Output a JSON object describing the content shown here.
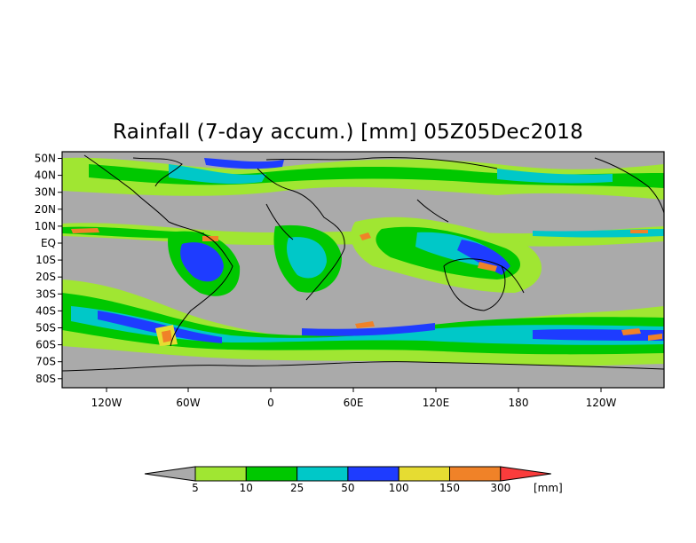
{
  "title": "Rainfall (7-day accum.) [mm] 05Z05Dec2018",
  "map": {
    "lat_labels": [
      "50N",
      "40N",
      "30N",
      "20N",
      "10N",
      "EQ",
      "10S",
      "20S",
      "30S",
      "40S",
      "50S",
      "60S",
      "70S",
      "80S"
    ],
    "lon_labels": [
      "120W",
      "60W",
      "0",
      "60E",
      "120E",
      "180",
      "120W"
    ],
    "background_color": "#aaaaaa"
  },
  "colorbar": {
    "unit": "[mm]",
    "ticks": [
      "5",
      "10",
      "25",
      "50",
      "100",
      "150",
      "300"
    ],
    "colors": [
      "#aaaaaa",
      "#a0e632",
      "#00c800",
      "#00c8c8",
      "#1e3cff",
      "#e6dc32",
      "#f08228",
      "#fa3c3c"
    ]
  }
}
